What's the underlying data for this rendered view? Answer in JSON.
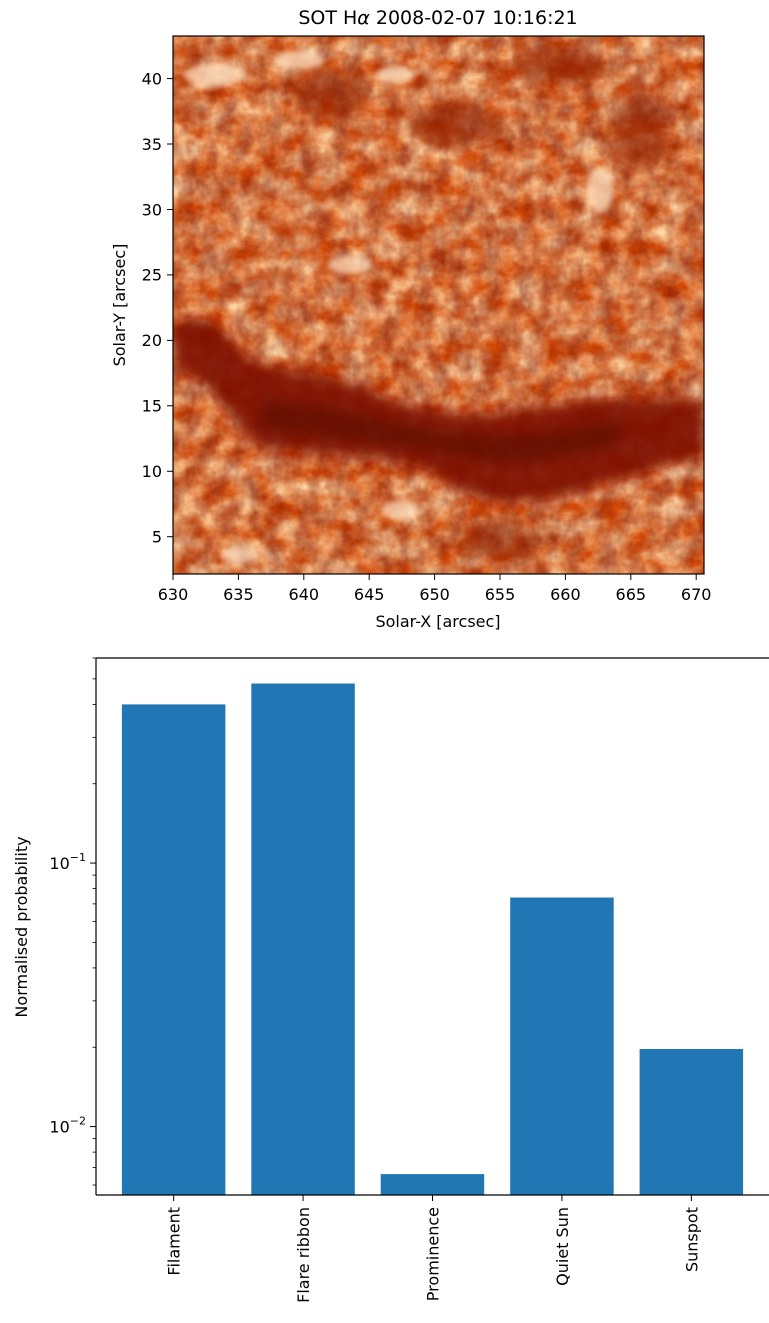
{
  "image_panel": {
    "title_prefix": "SOT H",
    "title_symbol": "α",
    "title_suffix": " 2008-02-07 10:16:21",
    "xlabel": "Solar-X [arcsec]",
    "ylabel": "Solar-Y [arcsec]",
    "xlim": [
      630,
      670.6
    ],
    "ylim": [
      2.2,
      43.3
    ],
    "xticks": [
      "630",
      "635",
      "640",
      "645",
      "650",
      "655",
      "660",
      "665",
      "670"
    ],
    "yticks": [
      "5",
      "10",
      "15",
      "20",
      "25",
      "30",
      "35",
      "40"
    ],
    "colormap": "gist_heat",
    "colors": {
      "dark": "#7a0a00",
      "mid": "#e0540a",
      "bright": "#ffb060",
      "highlight": "#ffe2c2"
    }
  },
  "chart_data": [
    {
      "type": "bar",
      "title": "",
      "xlabel": "",
      "ylabel": "Normalised probability",
      "yscale": "log",
      "ylim": [
        0.0055,
        0.6
      ],
      "categories": [
        "Filament",
        "Flare ribbon",
        "Prominence",
        "Quiet Sun",
        "Sunspot"
      ],
      "values": [
        0.4,
        0.48,
        0.0066,
        0.074,
        0.0197
      ],
      "bar_color": "#2077b4",
      "ytick_major": [
        {
          "base": "10",
          "exp": "−1",
          "value": 0.1
        },
        {
          "base": "10",
          "exp": "−2",
          "value": 0.01
        }
      ],
      "ytick_minor": [
        0.006,
        0.007,
        0.008,
        0.009,
        0.02,
        0.03,
        0.04,
        0.05,
        0.06,
        0.07,
        0.08,
        0.09,
        0.2,
        0.3,
        0.4,
        0.5,
        0.6
      ]
    }
  ]
}
